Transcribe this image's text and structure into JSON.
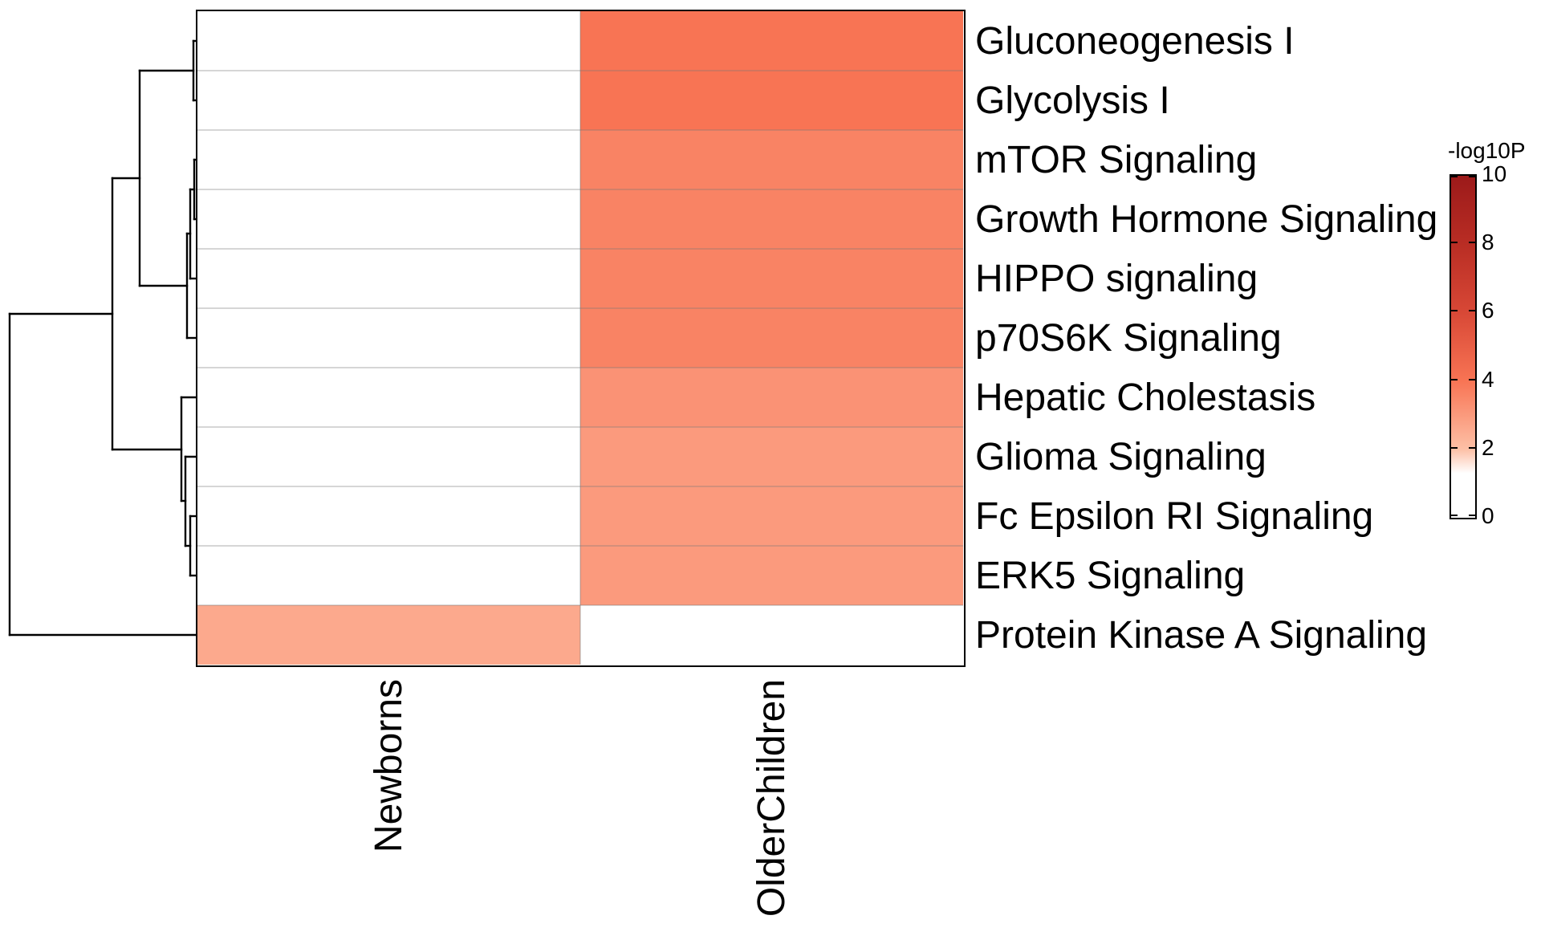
{
  "chart_data": {
    "type": "heatmap",
    "columns": [
      "Newborns",
      "OlderChildren"
    ],
    "rows": [
      "Gluconeogenesis I",
      "Glycolysis I",
      "mTOR Signaling",
      "Growth Hormone Signaling",
      "HIPPO signaling",
      "p70S6K Signaling",
      "Hepatic Cholestasis",
      "Glioma Signaling",
      "Fc Epsilon RI Signaling",
      "ERK5 Signaling",
      "Protein Kinase A Signaling"
    ],
    "values": [
      [
        0,
        4.0
      ],
      [
        0,
        4.0
      ],
      [
        0,
        3.6
      ],
      [
        0,
        3.6
      ],
      [
        0,
        3.6
      ],
      [
        0,
        3.6
      ],
      [
        0,
        3.2
      ],
      [
        0,
        3.0
      ],
      [
        0,
        3.0
      ],
      [
        0,
        3.0
      ],
      [
        2.6,
        0
      ]
    ],
    "colorbar": {
      "title": "-log10P",
      "ticks": [
        10,
        8,
        6,
        4,
        2,
        0
      ],
      "min": 0,
      "max": 10,
      "stops": [
        [
          0.0,
          "#ffffff"
        ],
        [
          1.3,
          "#ffffff"
        ],
        [
          2.0,
          "#fdc0a6"
        ],
        [
          4.0,
          "#f87454"
        ],
        [
          6.0,
          "#d84836"
        ],
        [
          8.0,
          "#b92d24"
        ],
        [
          10.0,
          "#9c1a1a"
        ]
      ]
    },
    "grid": true,
    "legend_position": "right",
    "row_dendrogram_segments": [
      [
        246,
        51,
        241,
        51
      ],
      [
        246,
        125,
        241,
        125
      ],
      [
        241,
        51,
        241,
        125
      ],
      [
        241,
        88,
        174,
        88
      ],
      [
        246,
        199,
        242,
        199
      ],
      [
        246,
        273,
        242,
        273
      ],
      [
        242,
        199,
        242,
        273
      ],
      [
        242,
        236,
        237,
        236
      ],
      [
        246,
        347,
        237,
        347
      ],
      [
        237,
        236,
        237,
        347
      ],
      [
        237,
        291,
        233,
        291
      ],
      [
        246,
        421,
        233,
        421
      ],
      [
        233,
        291,
        233,
        421
      ],
      [
        233,
        356,
        174,
        356
      ],
      [
        174,
        88,
        174,
        356
      ],
      [
        174,
        222,
        140,
        222
      ],
      [
        246,
        495,
        226,
        495
      ],
      [
        246,
        569,
        231,
        569
      ],
      [
        246,
        643,
        237,
        643
      ],
      [
        246,
        717,
        237,
        717
      ],
      [
        237,
        643,
        237,
        717
      ],
      [
        237,
        680,
        231,
        680
      ],
      [
        231,
        569,
        231,
        680
      ],
      [
        231,
        624,
        226,
        624
      ],
      [
        226,
        495,
        226,
        624
      ],
      [
        226,
        560,
        140,
        560
      ],
      [
        140,
        222,
        140,
        560
      ],
      [
        140,
        391,
        12,
        391
      ],
      [
        12,
        391,
        12,
        791
      ],
      [
        246,
        791,
        12,
        791
      ]
    ]
  }
}
